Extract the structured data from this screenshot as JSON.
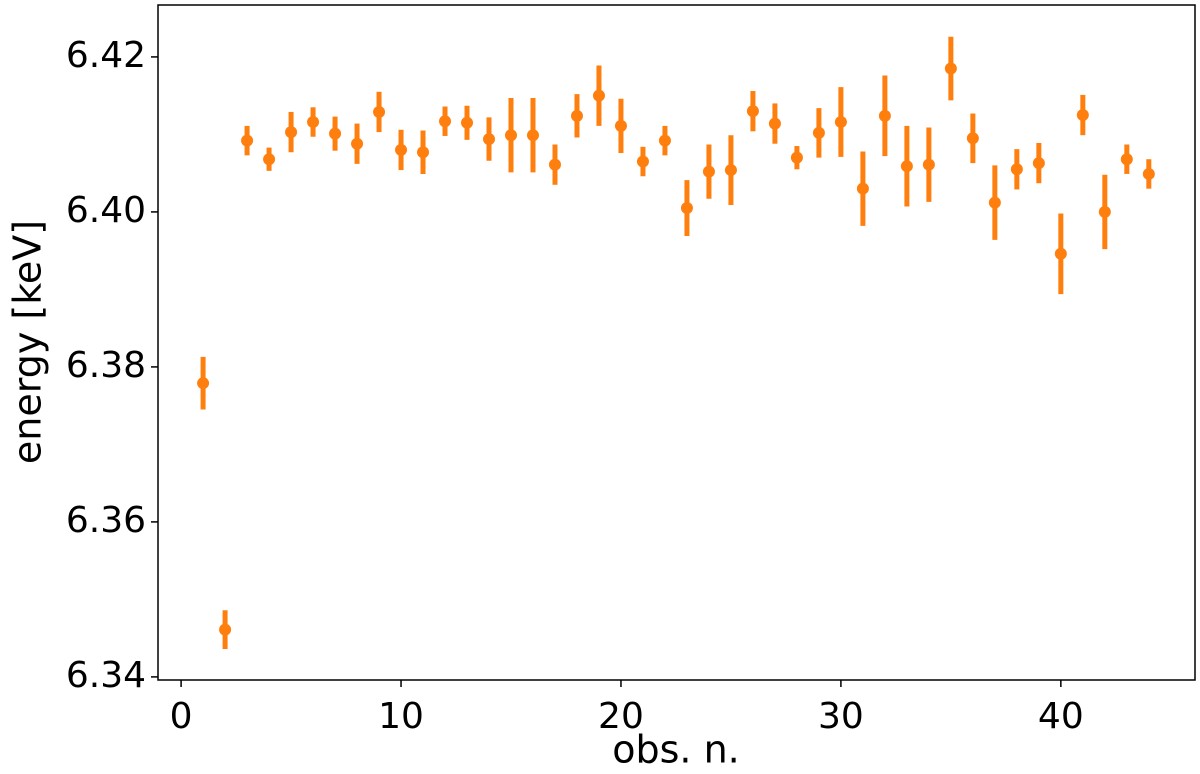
{
  "chart_data": {
    "type": "errorbar",
    "xlabel": "obs. n.",
    "ylabel": "energy [keV]",
    "xlim": [
      -1.05,
      46.1
    ],
    "ylim": [
      6.3396,
      6.4267
    ],
    "xticks": [
      0,
      10,
      20,
      30,
      40
    ],
    "yticks": [
      6.34,
      6.36,
      6.38,
      {
        "value": 6.4,
        "label": "6.40"
      },
      6.42
    ],
    "series": [
      {
        "color": "#ff7f0e",
        "x": [
          1,
          2,
          3,
          4,
          5,
          6,
          7,
          8,
          9,
          10,
          11,
          12,
          13,
          14,
          15,
          16,
          17,
          18,
          19,
          20,
          21,
          22,
          23,
          24,
          25,
          26,
          27,
          28,
          29,
          30,
          31,
          32,
          33,
          34,
          35,
          36,
          37,
          38,
          39,
          40,
          41,
          42,
          43,
          44
        ],
        "values": [
          6.3779,
          6.3461,
          6.4092,
          6.4068,
          6.4103,
          6.4116,
          6.4101,
          6.4088,
          6.4129,
          6.408,
          6.4077,
          6.4117,
          6.4115,
          6.4094,
          6.4099,
          6.4099,
          6.4061,
          6.4124,
          6.415,
          6.4111,
          6.4065,
          6.4092,
          6.4005,
          6.4052,
          6.4054,
          6.413,
          6.4114,
          6.407,
          6.4102,
          6.4116,
          6.403,
          6.4124,
          6.4059,
          6.4061,
          6.4185,
          6.4095,
          6.4012,
          6.4055,
          6.4063,
          6.3946,
          6.4125,
          6.4,
          6.4068,
          6.4049
        ],
        "errors": [
          0.0034,
          0.0025,
          0.0019,
          0.0015,
          0.0026,
          0.0019,
          0.0022,
          0.0026,
          0.0026,
          0.0026,
          0.0028,
          0.0019,
          0.0022,
          0.0028,
          0.0048,
          0.0048,
          0.0026,
          0.0028,
          0.0039,
          0.0035,
          0.0019,
          0.0019,
          0.0036,
          0.0035,
          0.0045,
          0.0026,
          0.0026,
          0.0015,
          0.0032,
          0.0045,
          0.0048,
          0.0052,
          0.0052,
          0.0048,
          0.0041,
          0.0032,
          0.0048,
          0.0026,
          0.0026,
          0.0052,
          0.0026,
          0.0048,
          0.0019,
          0.0019
        ]
      }
    ]
  }
}
